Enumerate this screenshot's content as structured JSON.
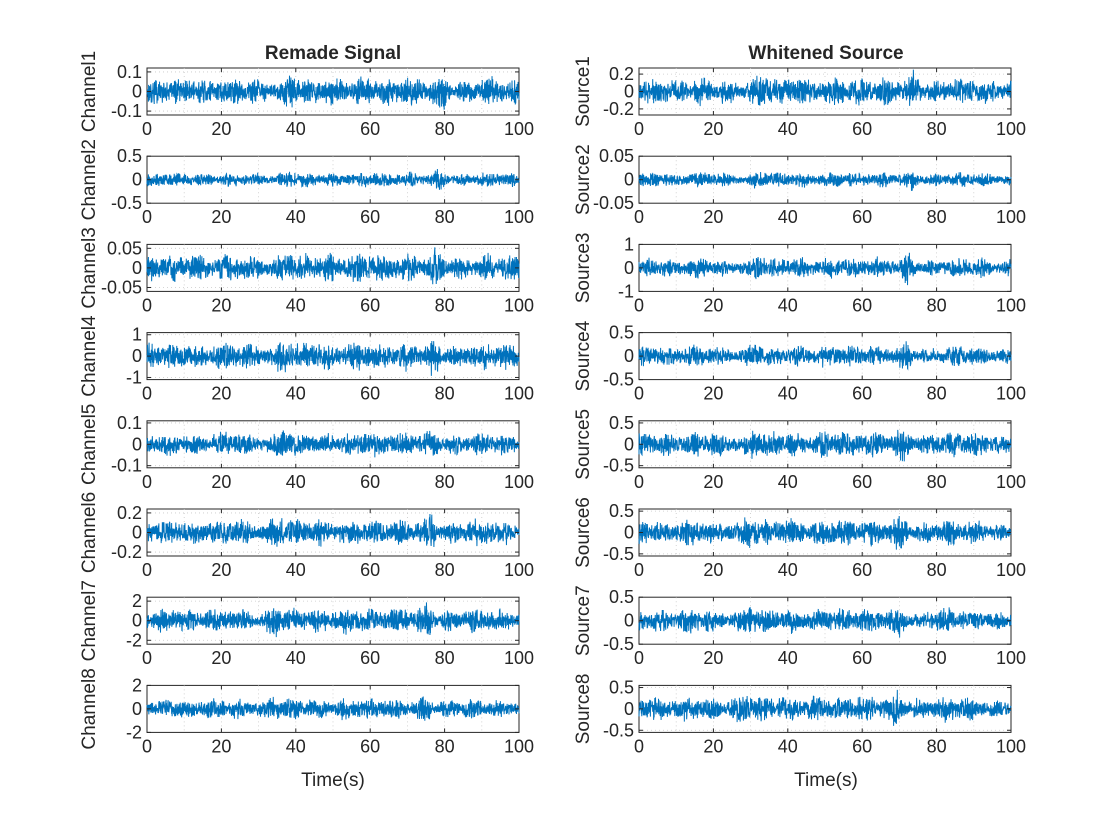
{
  "figure": {
    "columns": [
      {
        "title": "Remade Signal",
        "xlabel": "Time(s)"
      },
      {
        "title": "Whitened Source",
        "xlabel": "Time(s)"
      }
    ]
  },
  "chart_data": [
    {
      "type": "line",
      "column": 0,
      "row": 0,
      "ylabel": "Channel1",
      "xlim": [
        0,
        100
      ],
      "ylim": [
        -0.12,
        0.12
      ],
      "xticks": [
        0,
        20,
        40,
        60,
        80,
        100
      ],
      "yticks": [
        0.1,
        0,
        -0.1
      ],
      "ytick_labels": [
        "0.1",
        "0",
        "-0.1"
      ],
      "series": [
        {
          "color": "#0072BD",
          "amplitude": 0.09
        }
      ],
      "grid": true
    },
    {
      "type": "line",
      "column": 0,
      "row": 1,
      "ylabel": "Channel2",
      "xlim": [
        0,
        100
      ],
      "ylim": [
        -0.5,
        0.5
      ],
      "xticks": [
        0,
        20,
        40,
        60,
        80,
        100
      ],
      "yticks": [
        0.5,
        0,
        -0.5
      ],
      "ytick_labels": [
        "0.5",
        "0",
        "-0.5"
      ],
      "series": [
        {
          "color": "#0072BD",
          "amplitude": 0.2
        }
      ],
      "grid": true
    },
    {
      "type": "line",
      "column": 0,
      "row": 2,
      "ylabel": "Channel3",
      "xlim": [
        0,
        100
      ],
      "ylim": [
        -0.06,
        0.06
      ],
      "xticks": [
        0,
        20,
        40,
        60,
        80,
        100
      ],
      "yticks": [
        0.05,
        0,
        -0.05
      ],
      "ytick_labels": [
        "0.05",
        "0",
        "-0.05"
      ],
      "series": [
        {
          "color": "#0072BD",
          "amplitude": 0.045
        }
      ],
      "grid": true
    },
    {
      "type": "line",
      "column": 0,
      "row": 3,
      "ylabel": "Channel4",
      "xlim": [
        0,
        100
      ],
      "ylim": [
        -1.1,
        1.1
      ],
      "xticks": [
        0,
        20,
        40,
        60,
        80,
        100
      ],
      "yticks": [
        1,
        0,
        -1
      ],
      "ytick_labels": [
        "1",
        "0",
        "-1"
      ],
      "series": [
        {
          "color": "#0072BD",
          "amplitude": 0.8
        }
      ],
      "grid": true
    },
    {
      "type": "line",
      "column": 0,
      "row": 4,
      "ylabel": "Channel5",
      "xlim": [
        0,
        100
      ],
      "ylim": [
        -0.11,
        0.11
      ],
      "xticks": [
        0,
        20,
        40,
        60,
        80,
        100
      ],
      "yticks": [
        0.1,
        0,
        -0.1
      ],
      "ytick_labels": [
        "0.1",
        "0",
        "-0.1"
      ],
      "series": [
        {
          "color": "#0072BD",
          "amplitude": 0.07
        }
      ],
      "grid": true
    },
    {
      "type": "line",
      "column": 0,
      "row": 5,
      "ylabel": "Channel6",
      "xlim": [
        0,
        100
      ],
      "ylim": [
        -0.24,
        0.24
      ],
      "xticks": [
        0,
        20,
        40,
        60,
        80,
        100
      ],
      "yticks": [
        0.2,
        0,
        -0.2
      ],
      "ytick_labels": [
        "0.2",
        "0",
        "-0.2"
      ],
      "series": [
        {
          "color": "#0072BD",
          "amplitude": 0.17
        }
      ],
      "grid": true
    },
    {
      "type": "line",
      "column": 0,
      "row": 6,
      "ylabel": "Channel7",
      "xlim": [
        0,
        100
      ],
      "ylim": [
        -2.4,
        2.4
      ],
      "xticks": [
        0,
        20,
        40,
        60,
        80,
        100
      ],
      "yticks": [
        2,
        0,
        -2
      ],
      "ytick_labels": [
        "2",
        "0",
        "-2"
      ],
      "series": [
        {
          "color": "#0072BD",
          "amplitude": 1.6
        }
      ],
      "grid": true
    },
    {
      "type": "line",
      "column": 0,
      "row": 7,
      "ylabel": "Channel8",
      "xlim": [
        0,
        100
      ],
      "ylim": [
        -2,
        2
      ],
      "xticks": [
        0,
        20,
        40,
        60,
        80,
        100
      ],
      "yticks": [
        2,
        0,
        -2
      ],
      "ytick_labels": [
        "2",
        "0",
        "-2"
      ],
      "series": [
        {
          "color": "#0072BD",
          "amplitude": 1.1
        }
      ],
      "grid": true
    },
    {
      "type": "line",
      "column": 1,
      "row": 0,
      "ylabel": "Source1",
      "xlim": [
        0,
        100
      ],
      "ylim": [
        -0.27,
        0.27
      ],
      "xticks": [
        0,
        20,
        40,
        60,
        80,
        100
      ],
      "yticks": [
        0.2,
        0,
        -0.2
      ],
      "ytick_labels": [
        "0.2",
        "0",
        "-0.2"
      ],
      "series": [
        {
          "color": "#0072BD",
          "amplitude": 0.2
        }
      ],
      "grid": true
    },
    {
      "type": "line",
      "column": 1,
      "row": 1,
      "ylabel": "Source2",
      "xlim": [
        0,
        100
      ],
      "ylim": [
        -0.05,
        0.05
      ],
      "xticks": [
        0,
        20,
        40,
        60,
        80,
        100
      ],
      "yticks": [
        0.05,
        0,
        -0.05
      ],
      "ytick_labels": [
        "0.05",
        "0",
        "-0.05"
      ],
      "series": [
        {
          "color": "#0072BD",
          "amplitude": 0.02
        }
      ],
      "grid": true
    },
    {
      "type": "line",
      "column": 1,
      "row": 2,
      "ylabel": "Source3",
      "xlim": [
        0,
        100
      ],
      "ylim": [
        -1,
        1
      ],
      "xticks": [
        0,
        20,
        40,
        60,
        80,
        100
      ],
      "yticks": [
        1,
        0,
        -1
      ],
      "ytick_labels": [
        "1",
        "0",
        "-1"
      ],
      "series": [
        {
          "color": "#0072BD",
          "amplitude": 0.55
        }
      ],
      "grid": true
    },
    {
      "type": "line",
      "column": 1,
      "row": 3,
      "ylabel": "Source4",
      "xlim": [
        0,
        100
      ],
      "ylim": [
        -0.5,
        0.5
      ],
      "xticks": [
        0,
        20,
        40,
        60,
        80,
        100
      ],
      "yticks": [
        0.5,
        0,
        -0.5
      ],
      "ytick_labels": [
        "0.5",
        "0",
        "-0.5"
      ],
      "series": [
        {
          "color": "#0072BD",
          "amplitude": 0.28
        }
      ],
      "grid": true
    },
    {
      "type": "line",
      "column": 1,
      "row": 4,
      "ylabel": "Source5",
      "xlim": [
        0,
        100
      ],
      "ylim": [
        -0.55,
        0.55
      ],
      "xticks": [
        0,
        20,
        40,
        60,
        80,
        100
      ],
      "yticks": [
        0.5,
        0,
        -0.5
      ],
      "ytick_labels": [
        "0.5",
        "0",
        "-0.5"
      ],
      "series": [
        {
          "color": "#0072BD",
          "amplitude": 0.38
        }
      ],
      "grid": true
    },
    {
      "type": "line",
      "column": 1,
      "row": 5,
      "ylabel": "Source6",
      "xlim": [
        0,
        100
      ],
      "ylim": [
        -0.55,
        0.55
      ],
      "xticks": [
        0,
        20,
        40,
        60,
        80,
        100
      ],
      "yticks": [
        0.5,
        0,
        -0.5
      ],
      "ytick_labels": [
        "0.5",
        "0",
        "-0.5"
      ],
      "series": [
        {
          "color": "#0072BD",
          "amplitude": 0.38
        }
      ],
      "grid": true
    },
    {
      "type": "line",
      "column": 1,
      "row": 6,
      "ylabel": "Source7",
      "xlim": [
        0,
        100
      ],
      "ylim": [
        -0.5,
        0.5
      ],
      "xticks": [
        0,
        20,
        40,
        60,
        80,
        100
      ],
      "yticks": [
        0.5,
        0,
        -0.5
      ],
      "ytick_labels": [
        "0.5",
        "0",
        "-0.5"
      ],
      "series": [
        {
          "color": "#0072BD",
          "amplitude": 0.33
        }
      ],
      "grid": true
    },
    {
      "type": "line",
      "column": 1,
      "row": 7,
      "ylabel": "Source8",
      "xlim": [
        0,
        100
      ],
      "ylim": [
        -0.55,
        0.55
      ],
      "xticks": [
        0,
        20,
        40,
        60,
        80,
        100
      ],
      "yticks": [
        0.5,
        0,
        -0.5
      ],
      "ytick_labels": [
        "0.5",
        "0",
        "-0.5"
      ],
      "series": [
        {
          "color": "#0072BD",
          "amplitude": 0.38
        }
      ],
      "grid": true
    }
  ]
}
